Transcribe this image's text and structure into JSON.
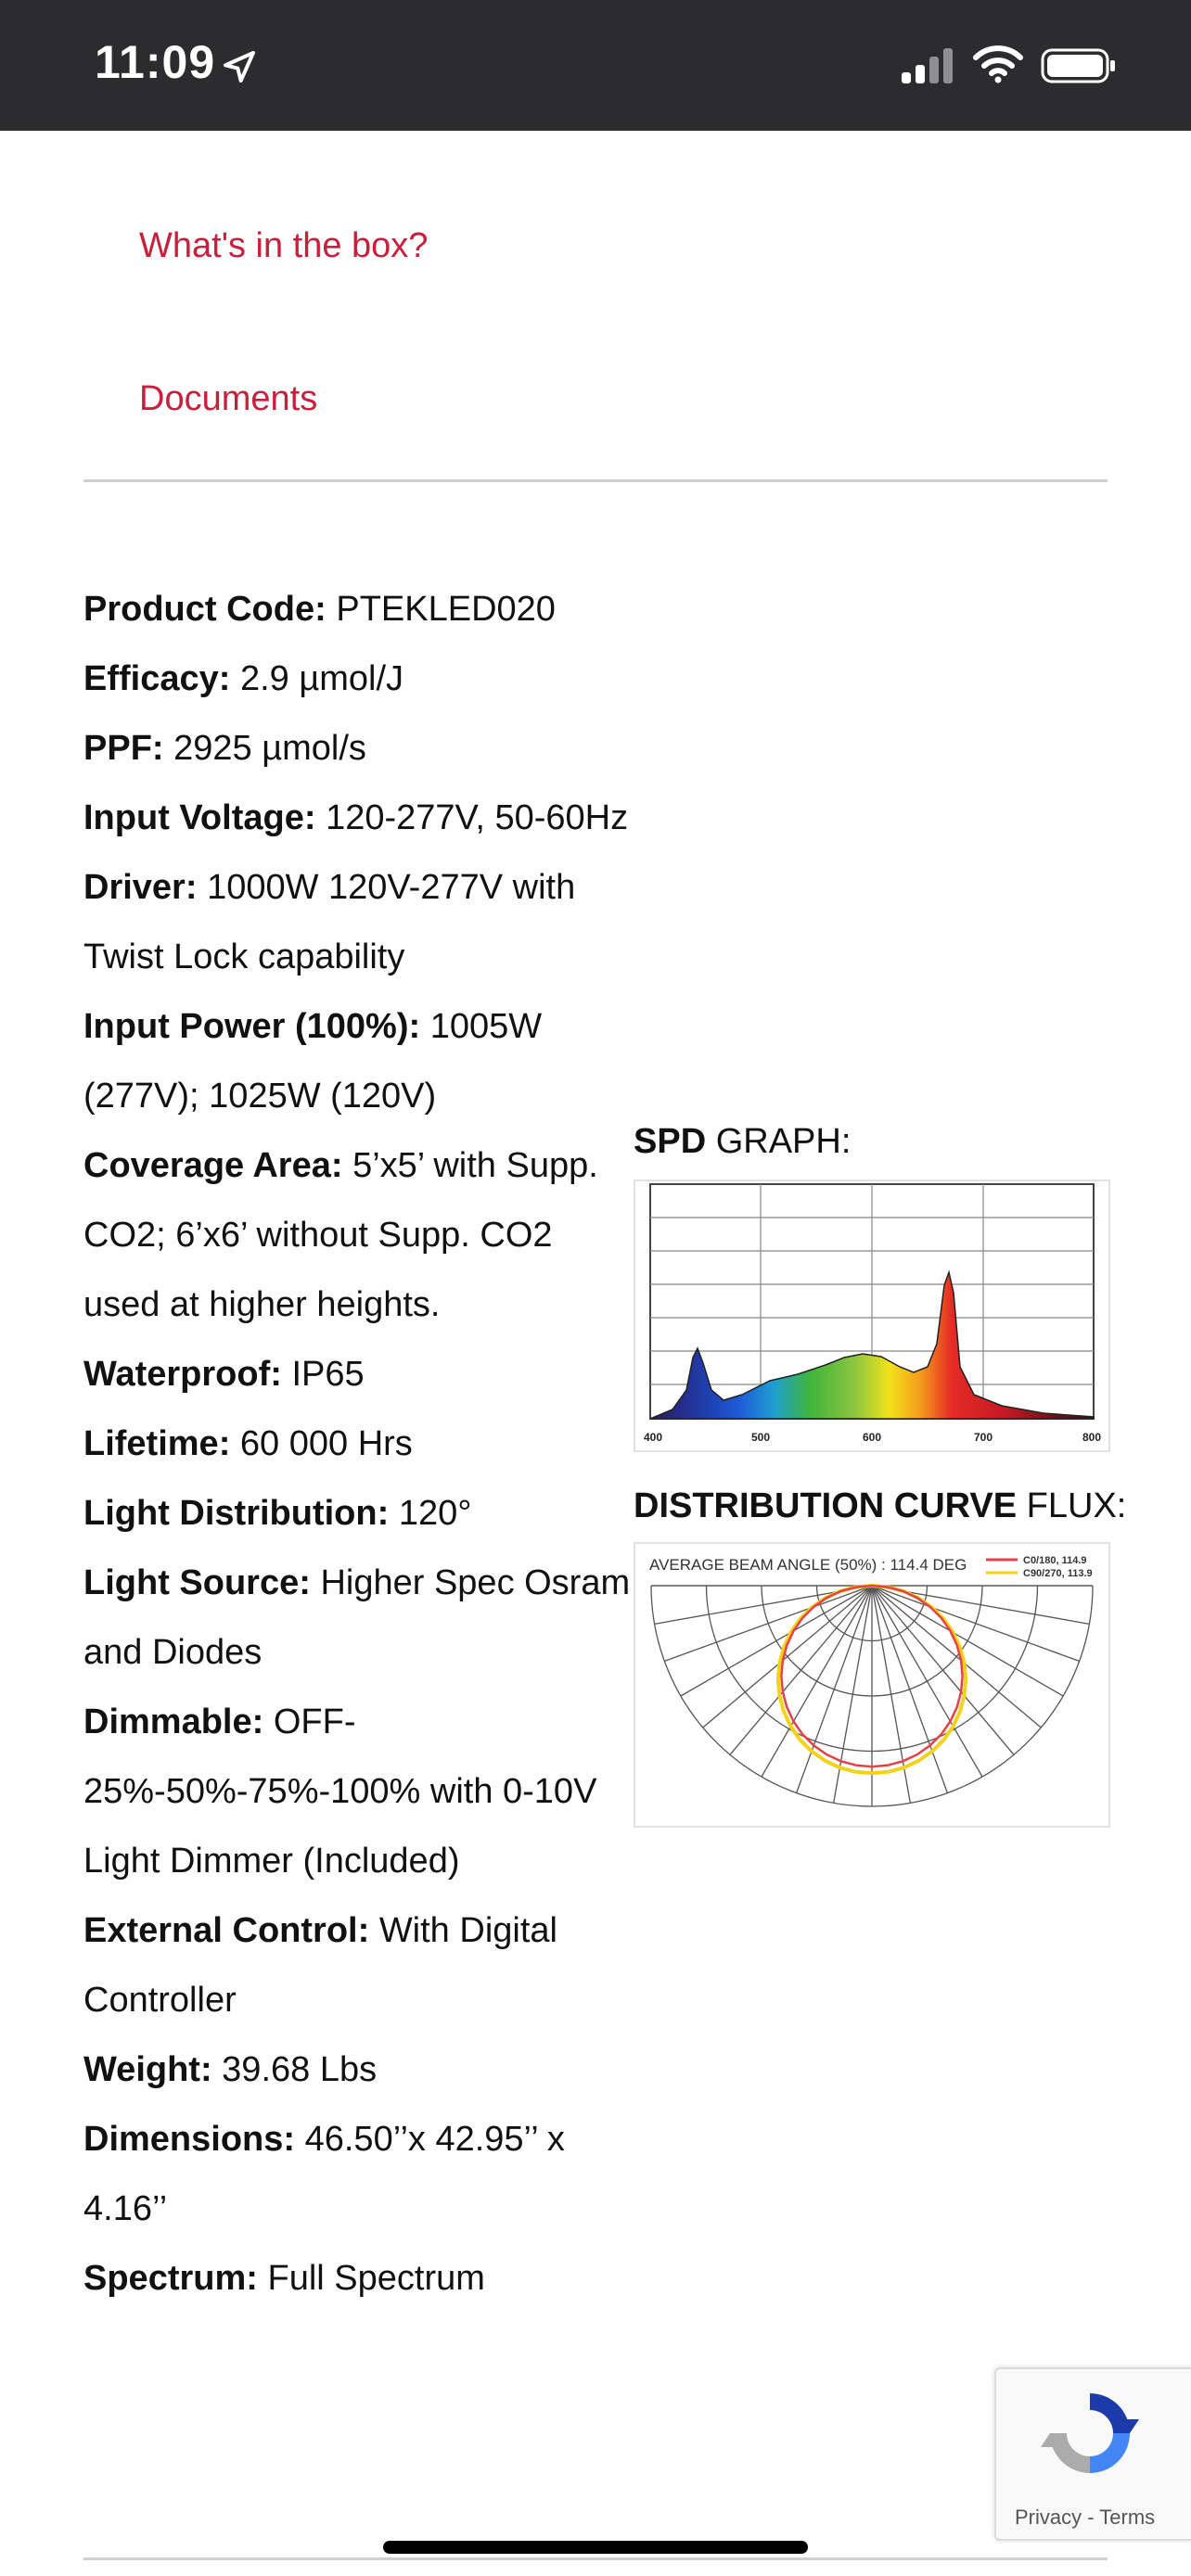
{
  "status_bar": {
    "time": "11:09"
  },
  "links": [
    {
      "label": "What's in the box?"
    },
    {
      "label": "Documents"
    }
  ],
  "specs": [
    {
      "label": "Product Code:",
      "value": "PTEKLED020"
    },
    {
      "label": "Efficacy:",
      "value": "2.9 µmol/J"
    },
    {
      "label": "PPF:",
      "value": "2925 µmol/s"
    },
    {
      "label": "Input Voltage:",
      "value": "120-277V, 50-60Hz"
    },
    {
      "label": "Driver:",
      "value": "1000W 120V-277V with Twist Lock capability"
    },
    {
      "label": "Input Power (100%):",
      "value": "1005W (277V); 1025W (120V)"
    },
    {
      "label": "Coverage Area:",
      "value": "5’x5’ with Supp. CO2; 6’x6’ without Supp. CO2 used at higher heights."
    },
    {
      "label": "Waterproof:",
      "value": "IP65"
    },
    {
      "label": "Lifetime:",
      "value": "60 000 Hrs"
    },
    {
      "label": "Light Distribution:",
      "value": "120°"
    },
    {
      "label": "Light Source:",
      "value": "Higher Spec Osram and Diodes"
    },
    {
      "label": "Dimmable:",
      "value": "OFF-25%-50%-75%-100% with 0-10V Light Dimmer (Included)"
    },
    {
      "label": "External Control:",
      "value": "With Digital Controller"
    },
    {
      "label": "Weight:",
      "value": "39.68 Lbs"
    },
    {
      "label": "Dimensions:",
      "value": "46.50’’x 42.95’’ x 4.16’’"
    },
    {
      "label": "Spectrum:",
      "value": "Full Spectrum"
    }
  ],
  "spd": {
    "title_bold": "SPD",
    "title_rest": " GRAPH:",
    "x_ticks": [
      "400",
      "500",
      "600",
      "700",
      "800"
    ]
  },
  "distribution": {
    "title_bold": "DISTRIBUTION CURVE",
    "title_rest": " FLUX:",
    "header": "AVERAGE BEAM ANGLE  (50%) : 114.4 DEG",
    "legend": [
      {
        "label": "C0/180, 114.9",
        "color": "#e8404a"
      },
      {
        "label": "C90/270, 113.9",
        "color": "#f2d21b"
      }
    ]
  },
  "captcha": {
    "text": "Privacy - Terms"
  },
  "colors": {
    "link": "#c8203c",
    "status_bar": "#2c2c2e"
  }
}
